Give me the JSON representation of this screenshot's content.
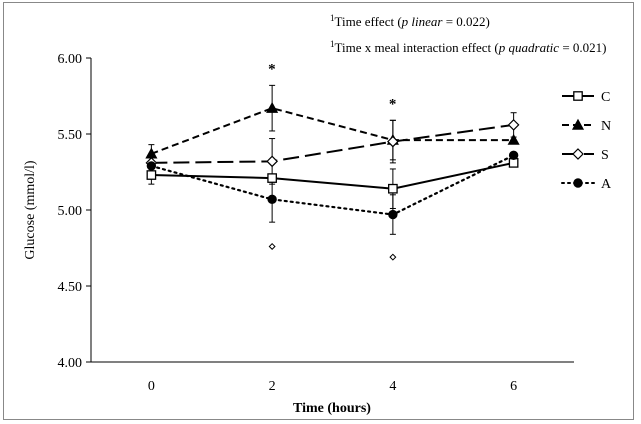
{
  "chart_data": {
    "type": "line",
    "xlabel": "Time (hours)",
    "ylabel": "Glucose (mmol/l)",
    "x": [
      0,
      2,
      4,
      6
    ],
    "x_tick_labels": [
      "0",
      "2",
      "4",
      "6"
    ],
    "y_tick_labels": [
      "4.00",
      "4.50",
      "5.00",
      "5.50",
      "6.00"
    ],
    "xlim": [
      -1,
      7
    ],
    "ylim": [
      4.0,
      6.0
    ],
    "y_ticks": [
      4.0,
      4.5,
      5.0,
      5.5,
      6.0
    ],
    "grid": false,
    "legend_position": "right",
    "annotations": {
      "note1": {
        "sup": "1",
        "before": "Time effect (",
        "italic": "p linear",
        "after": " = 0.022)"
      },
      "note2": {
        "sup": "1",
        "before": "Time x meal interaction effect (",
        "italic": "p quadratic",
        "after": " = 0.021)"
      }
    },
    "significance_mark": "*",
    "significance_x": [
      2,
      4
    ],
    "series": [
      {
        "name": "C",
        "values": [
          5.23,
          5.21,
          5.14,
          5.31
        ],
        "error": [
          0.06,
          0.0,
          0.13,
          0.0
        ],
        "line_style": "solid",
        "marker": "open-square",
        "color": "#000000"
      },
      {
        "name": "N",
        "values": [
          5.37,
          5.67,
          5.46,
          5.46
        ],
        "error": [
          0.06,
          0.15,
          0.13,
          0.0
        ],
        "line_style": "short-dash",
        "marker": "filled-triangle",
        "color": "#000000"
      },
      {
        "name": "S",
        "values": [
          5.31,
          5.32,
          5.45,
          5.56
        ],
        "error": [
          0.0,
          0.15,
          0.14,
          0.08
        ],
        "line_style": "long-dash",
        "marker": "open-diamond",
        "color": "#000000"
      },
      {
        "name": "A",
        "values": [
          5.29,
          5.07,
          4.97,
          5.36
        ],
        "error": [
          0.0,
          0.15,
          0.13,
          0.0
        ],
        "line_style": "dotted",
        "marker": "filled-circle",
        "color": "#000000"
      }
    ],
    "outliers": [
      {
        "series": "S",
        "x": 2,
        "value": 4.76,
        "marker": "open-diamond"
      },
      {
        "series": "S",
        "x": 4,
        "value": 4.69,
        "marker": "open-diamond"
      }
    ]
  }
}
